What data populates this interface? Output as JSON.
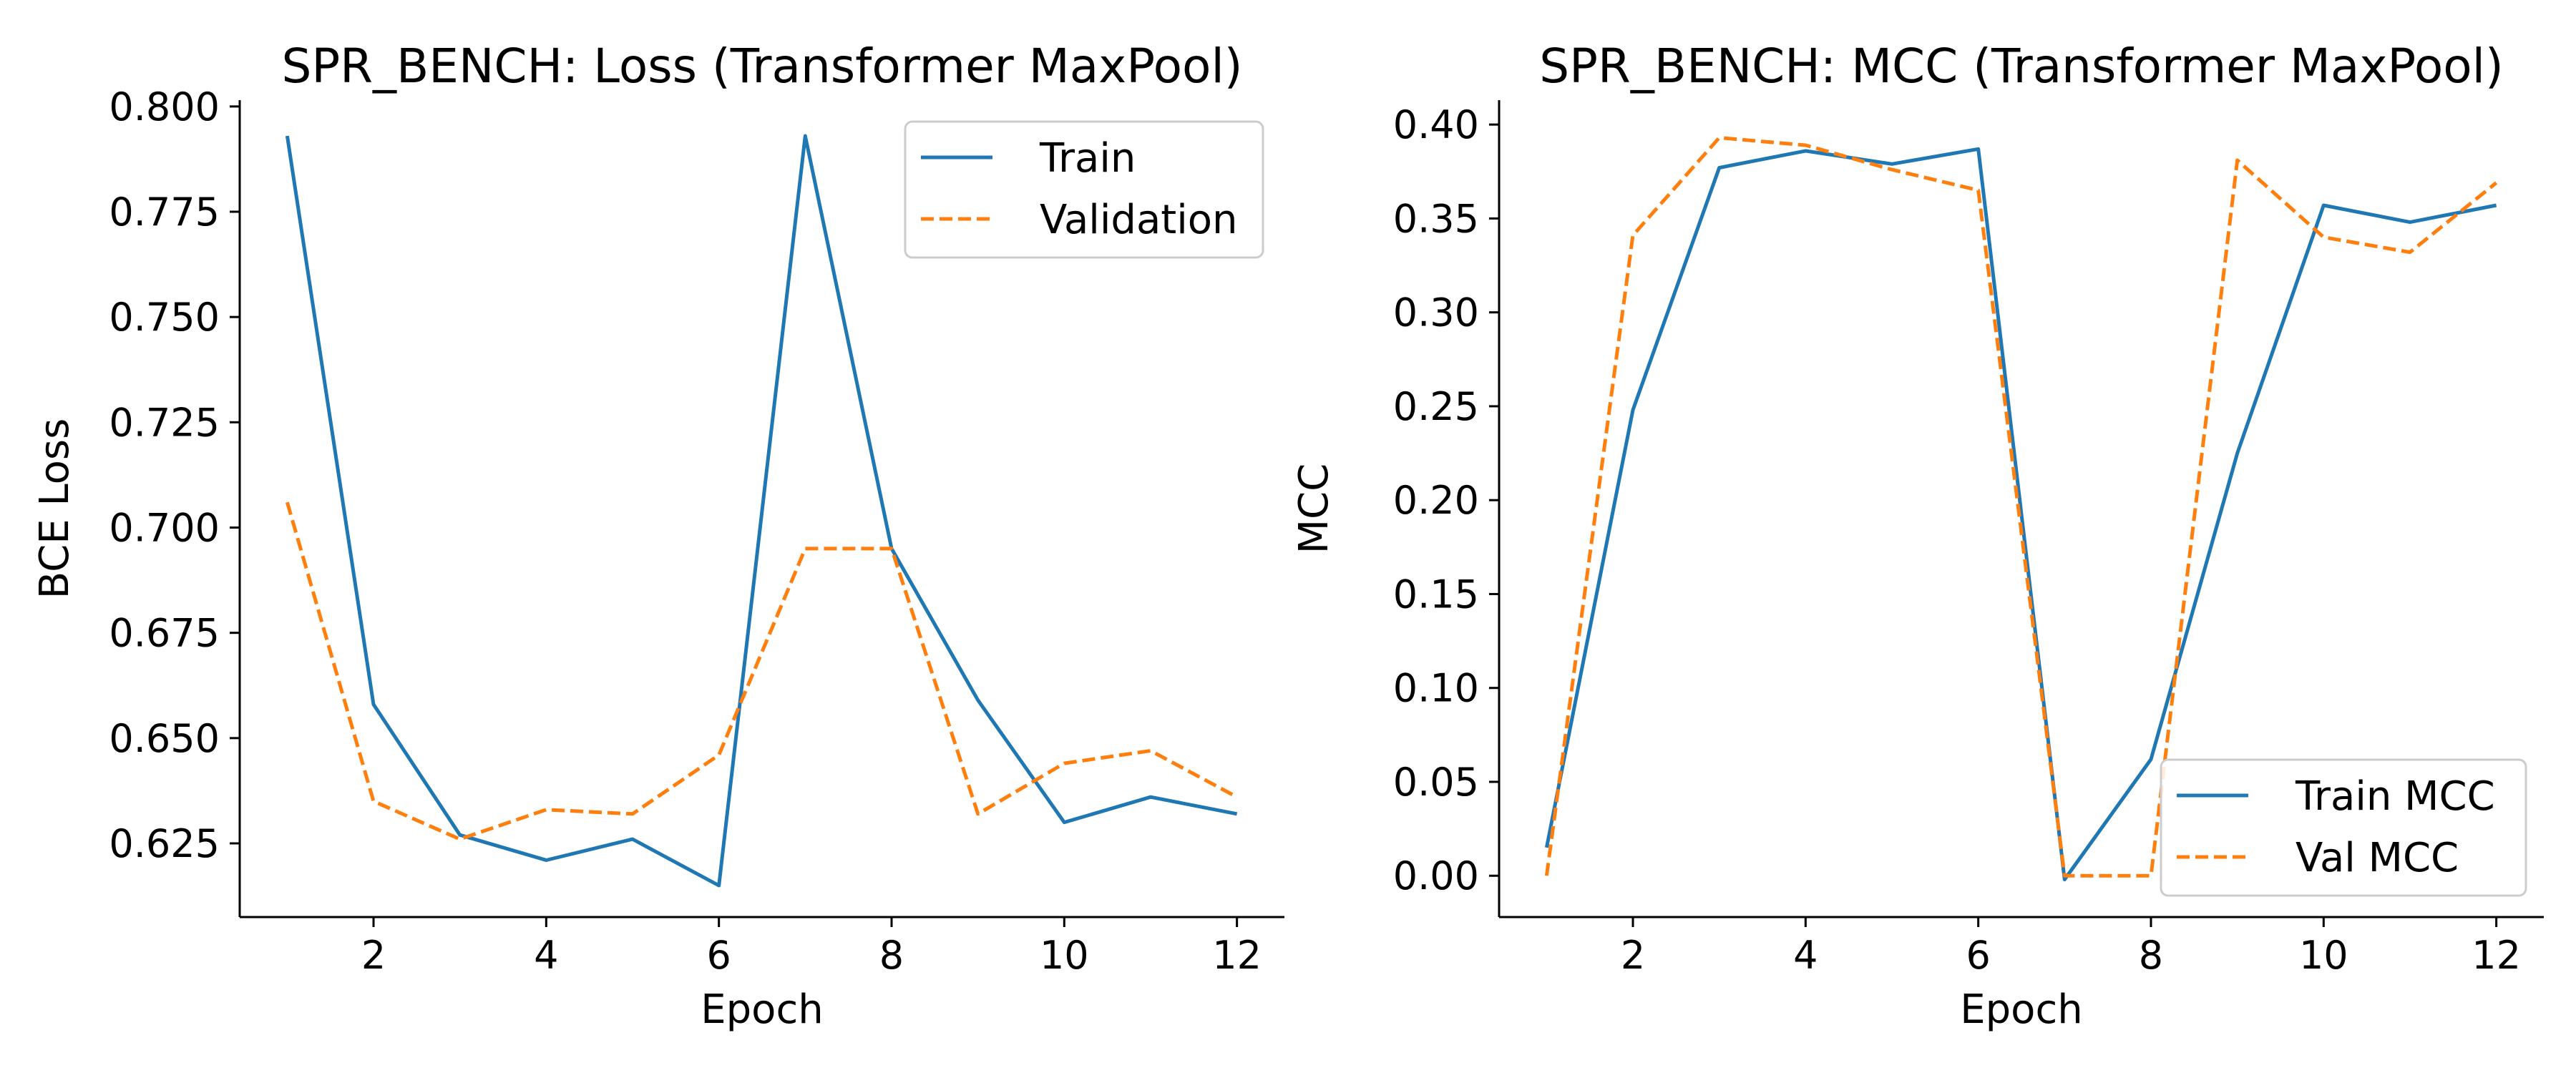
{
  "chart_data": [
    {
      "type": "line",
      "title": "SPR_BENCH: Loss (Transformer MaxPool)",
      "xlabel": "Epoch",
      "ylabel": "BCE Loss",
      "x": [
        1,
        2,
        3,
        4,
        5,
        6,
        7,
        8,
        9,
        10,
        11,
        12
      ],
      "xlim": [
        0.45,
        12.55
      ],
      "ylim": [
        0.6075,
        0.8015
      ],
      "xticks": [
        2,
        4,
        6,
        8,
        10,
        12
      ],
      "xtick_labels": [
        "2",
        "4",
        "6",
        "8",
        "10",
        "12"
      ],
      "yticks": [
        0.625,
        0.65,
        0.675,
        0.7,
        0.725,
        0.75,
        0.775,
        0.8
      ],
      "ytick_labels": [
        "0.625",
        "0.650",
        "0.675",
        "0.700",
        "0.725",
        "0.750",
        "0.775",
        "0.800"
      ],
      "legend_position": "top-right",
      "grid": false,
      "series": [
        {
          "name": "Train",
          "color": "#1f77b4",
          "style": "solid",
          "values": [
            0.793,
            0.658,
            0.627,
            0.621,
            0.626,
            0.615,
            0.793,
            0.695,
            0.659,
            0.63,
            0.636,
            0.632
          ]
        },
        {
          "name": "Validation",
          "color": "#ff7f0e",
          "style": "dashed",
          "values": [
            0.706,
            0.635,
            0.626,
            0.633,
            0.632,
            0.646,
            0.695,
            0.695,
            0.632,
            0.644,
            0.647,
            0.636
          ]
        }
      ]
    },
    {
      "type": "line",
      "title": "SPR_BENCH: MCC (Transformer MaxPool)",
      "xlabel": "Epoch",
      "ylabel": "MCC",
      "x": [
        1,
        2,
        3,
        4,
        5,
        6,
        7,
        8,
        9,
        10,
        11,
        12
      ],
      "xlim": [
        0.45,
        12.55
      ],
      "ylim": [
        -0.022,
        0.413
      ],
      "xticks": [
        2,
        4,
        6,
        8,
        10,
        12
      ],
      "xtick_labels": [
        "2",
        "4",
        "6",
        "8",
        "10",
        "12"
      ],
      "yticks": [
        0,
        0.05,
        0.1,
        0.15,
        0.2,
        0.25,
        0.3,
        0.35,
        0.4
      ],
      "ytick_labels": [
        "0.00",
        "0.05",
        "0.10",
        "0.15",
        "0.20",
        "0.25",
        "0.30",
        "0.35",
        "0.40"
      ],
      "legend_position": "bottom-right",
      "grid": false,
      "series": [
        {
          "name": "Train MCC",
          "color": "#1f77b4",
          "style": "solid",
          "values": [
            0.015,
            0.248,
            0.377,
            0.386,
            0.379,
            0.387,
            -0.002,
            0.062,
            0.225,
            0.357,
            0.348,
            0.357
          ]
        },
        {
          "name": "Val MCC",
          "color": "#ff7f0e",
          "style": "dashed",
          "values": [
            0.0,
            0.341,
            0.393,
            0.389,
            0.376,
            0.365,
            0.0,
            0.0,
            0.381,
            0.34,
            0.332,
            0.369
          ]
        }
      ]
    }
  ]
}
